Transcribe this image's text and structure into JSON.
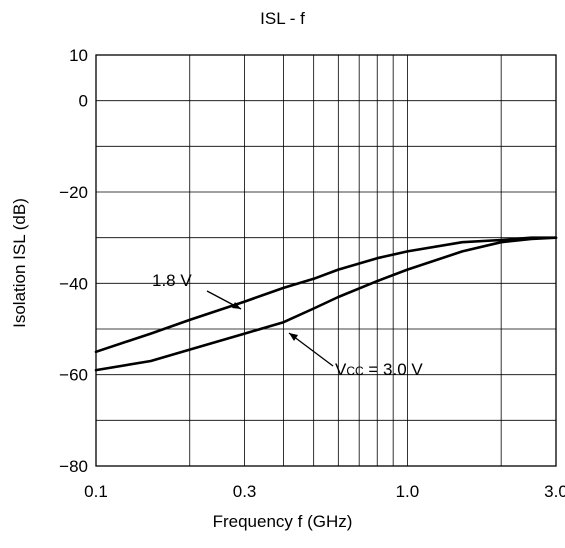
{
  "chart_data": {
    "type": "line",
    "title": "ISL - f",
    "xlabel": "Frequency f (GHz)",
    "ylabel": "Isolation ISL (dB)",
    "x_scale": "log",
    "xlim": [
      0.1,
      3.0
    ],
    "ylim": [
      -80,
      10
    ],
    "x_ticks": [
      {
        "value": 0.1,
        "label": "0.1"
      },
      {
        "value": 0.3,
        "label": "0.3"
      },
      {
        "value": 1.0,
        "label": "1.0"
      },
      {
        "value": 3.0,
        "label": "3.0"
      }
    ],
    "y_ticks": [
      {
        "value": 10,
        "label": "10"
      },
      {
        "value": 0,
        "label": "0"
      },
      {
        "value": -20,
        "label": "−20"
      },
      {
        "value": -40,
        "label": "−40"
      },
      {
        "value": -60,
        "label": "−60"
      },
      {
        "value": -80,
        "label": "−80"
      }
    ],
    "grid": true,
    "series": [
      {
        "name": "1.8 V",
        "x": [
          0.1,
          0.15,
          0.2,
          0.3,
          0.4,
          0.5,
          0.6,
          0.8,
          1.0,
          1.5,
          2.0,
          2.5,
          3.0
        ],
        "y": [
          -55,
          -51,
          -48,
          -44,
          -41,
          -39,
          -37,
          -34.5,
          -33,
          -31,
          -30.5,
          -30,
          -30
        ]
      },
      {
        "name": "V",
        "x": [
          0.1,
          0.15,
          0.2,
          0.3,
          0.4,
          0.5,
          0.6,
          0.8,
          1.0,
          1.5,
          2.0,
          2.5,
          3.0
        ],
        "y": [
          -59,
          -57,
          -54.5,
          -51,
          -48.5,
          -45.5,
          -43,
          -39.5,
          -37,
          -33,
          -31,
          -30.3,
          -30
        ]
      }
    ],
    "annotations": {
      "label_1_8": "1.8 V",
      "label_vcc_v": "V",
      "label_vcc_sub": "CC",
      "label_vcc_rest": " = 3.0 V"
    }
  }
}
